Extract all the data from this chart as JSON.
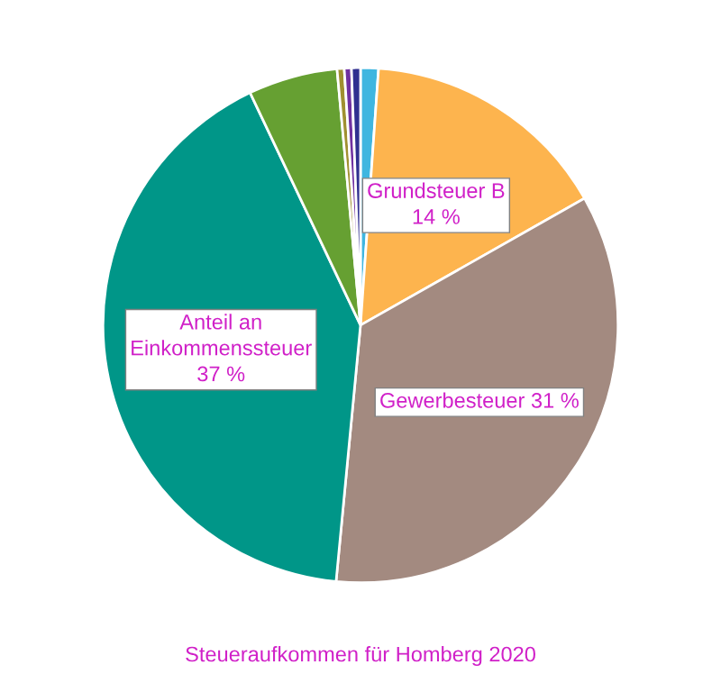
{
  "chart_data": {
    "type": "pie",
    "title": "Steueraufkommen für Homberg 2020",
    "categories": [
      null,
      null,
      null,
      null,
      null,
      null,
      null,
      null
    ],
    "values": [
      1.0,
      14,
      31,
      37,
      5,
      0.4,
      0.4,
      0.5
    ],
    "colors": [
      "#3fb6e0",
      "#fdb44e",
      "#a38a80",
      "#009688",
      "#66a032",
      "#a09030",
      "#7030a0",
      "#303090"
    ],
    "value_labels": [
      null,
      "Grundsteuer B\n14 %",
      "Gewerbesteuer 31 %",
      "Anteil an\nEinkommenssteuer\n37 %",
      null,
      null,
      null,
      null
    ]
  }
}
